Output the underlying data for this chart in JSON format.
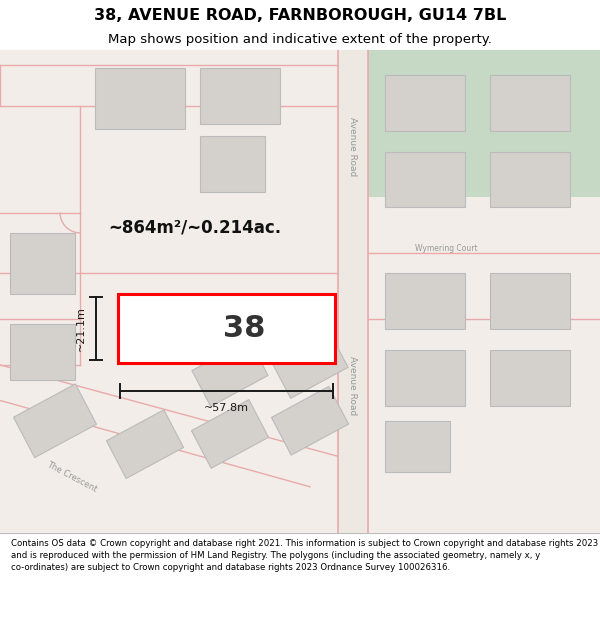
{
  "title": "38, AVENUE ROAD, FARNBOROUGH, GU14 7BL",
  "subtitle": "Map shows position and indicative extent of the property.",
  "footer": "Contains OS data © Crown copyright and database right 2021. This information is subject to Crown copyright and database rights 2023 and is reproduced with the permission of HM Land Registry. The polygons (including the associated geometry, namely x, y co-ordinates) are subject to Crown copyright and database rights 2023 Ordnance Survey 100026316.",
  "bg_color": "#f2ede8",
  "road_line_color": "#e8aaaa",
  "building_fill": "#d4d0cc",
  "building_edge": "#bbbbbb",
  "green_fill": "#c5d9c5",
  "subject_fill": "#ffffff",
  "subject_edge": "#ff0000",
  "subject_linewidth": 2.2,
  "measure_color": "#1a1a1a",
  "road_label_color": "#999999",
  "area_text": "~864m²/~0.214ac.",
  "width_text": "~57.8m",
  "height_text": "~21.1m",
  "number_text": "38",
  "avenue_road_label": "Avenue Road",
  "crescent_label": "The Crescent",
  "wymering_label": "Wymering Court",
  "title_fontsize": 11.5,
  "subtitle_fontsize": 9.5,
  "footer_fontsize": 6.2,
  "white_bg": "#ffffff"
}
